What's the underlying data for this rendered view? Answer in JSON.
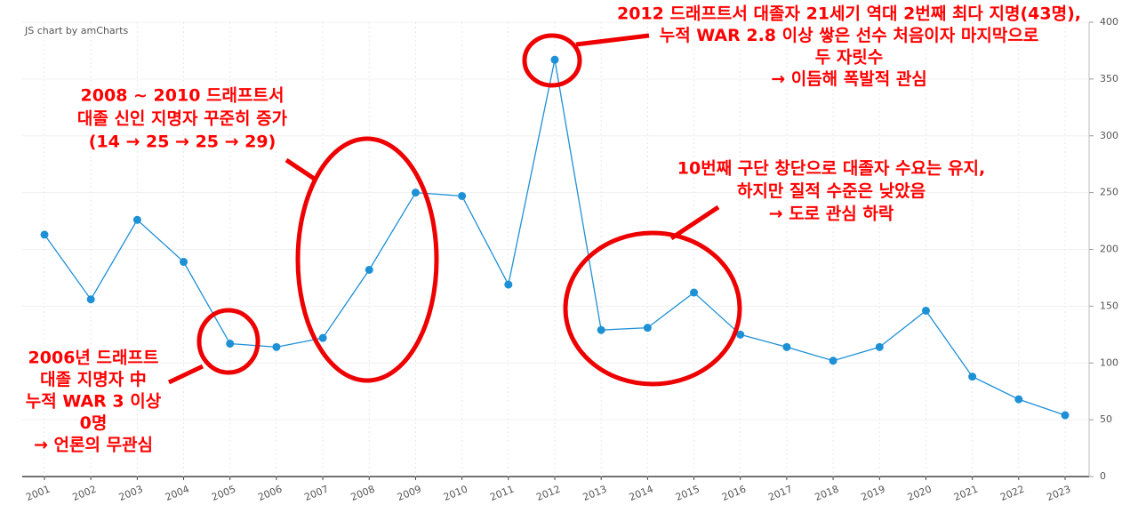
{
  "chart_data": {
    "type": "line",
    "credit": "JS chart by amCharts",
    "categories": [
      "2001",
      "2002",
      "2003",
      "2004",
      "2005",
      "2006",
      "2007",
      "2008",
      "2009",
      "2010",
      "2011",
      "2012",
      "2013",
      "2014",
      "2015",
      "2016",
      "2017",
      "2018",
      "2019",
      "2020",
      "2021",
      "2022",
      "2023"
    ],
    "values": [
      213,
      156,
      226,
      189,
      117,
      114,
      122,
      182,
      250,
      247,
      169,
      367,
      129,
      131,
      162,
      125,
      114,
      102,
      114,
      146,
      88,
      68,
      54
    ],
    "color": "#1e90d6",
    "ylim": [
      0,
      400
    ],
    "yticks": [
      0,
      50,
      100,
      150,
      200,
      250,
      300,
      350,
      400
    ],
    "grid": true,
    "annotations": [
      {
        "lines": [
          "2012 드래프트서 대졸자 21세기 역대 2번째 최다 지명(43명),",
          "누적 WAR 2.8 이상 쌓은 선수 처음이자 마지막으로",
          "두 자릿수",
          "→ 이듬해 폭발적 관심"
        ]
      },
      {
        "lines": [
          "2008 ~ 2010 드래프트서",
          "대졸 신인 지명자 꾸준히 증가",
          "(14 → 25 → 25 → 29)"
        ]
      },
      {
        "lines": [
          "10번째 구단 창단으로 대졸자 수요는 유지,",
          "하지만 질적 수준은 낮았음",
          "→ 도로 관심 하락"
        ]
      },
      {
        "lines": [
          "2006년 드래프트",
          "대졸 지명자 中",
          "누적 WAR 3 이상",
          "0명",
          "→ 언론의 무관심"
        ]
      }
    ]
  }
}
